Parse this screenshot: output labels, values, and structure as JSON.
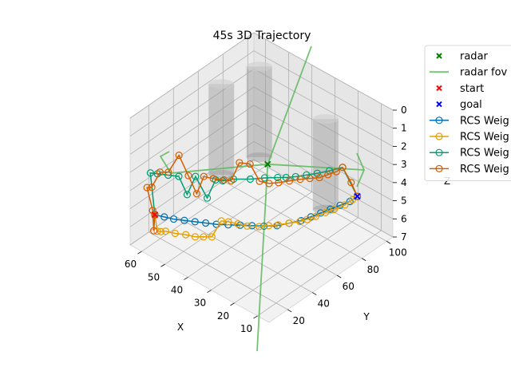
{
  "chart_data": {
    "type": "line",
    "projection": "3d",
    "title": "45s 3D Trajectory",
    "xlabel": "X",
    "ylabel": "Y",
    "zlabel": "Z",
    "xlim": [
      5,
      65
    ],
    "ylim": [
      5,
      105
    ],
    "zlim": [
      0,
      7
    ],
    "z_inverted": true,
    "x_ticks": [
      "60",
      "50",
      "40",
      "30",
      "20",
      "10"
    ],
    "y_ticks": [
      "20",
      "40",
      "60",
      "80",
      "100"
    ],
    "z_ticks": [
      "0",
      "1",
      "2",
      "3",
      "4",
      "5",
      "6",
      "7"
    ],
    "grid": true,
    "legend_position": "upper-right-outside",
    "colors": {
      "radar": "#008000",
      "radar_fov": "#5cb85c",
      "start": "#ff0000",
      "goal": "#0000ff",
      "series": [
        "#0072b2",
        "#e69f00",
        "#009e73",
        "#d55e00"
      ],
      "obstacles": "#999999"
    },
    "legend": [
      {
        "label": "radar",
        "kind": "marker-x",
        "color": "#008000"
      },
      {
        "label": "radar fov",
        "kind": "line",
        "color": "#5cb85c"
      },
      {
        "label": "start",
        "kind": "marker-x",
        "color": "#ff0000"
      },
      {
        "label": "goal",
        "kind": "marker-x",
        "color": "#0000ff"
      },
      {
        "label": "RCS Weig",
        "kind": "line-circle",
        "color": "#0072b2"
      },
      {
        "label": "RCS Weig",
        "kind": "line-circle",
        "color": "#e69f00"
      },
      {
        "label": "RCS Weig",
        "kind": "line-circle",
        "color": "#009e73"
      },
      {
        "label": "RCS Weig",
        "kind": "line-circle",
        "color": "#d55e00"
      }
    ],
    "radar": {
      "x": 35,
      "y": 60,
      "z": 3
    },
    "start": {
      "x": 57,
      "y": 10,
      "z": 5
    },
    "goal": {
      "x": 15,
      "y": 95,
      "z": 5
    },
    "obstacles": [
      {
        "x": 55,
        "y": 60,
        "r": 4,
        "z_top": 0,
        "z_bottom": 5
      },
      {
        "x": 52,
        "y": 85,
        "r": 4,
        "z_top": 0,
        "z_bottom": 5
      },
      {
        "x": 18,
        "y": 75,
        "r": 4,
        "z_top": 0,
        "z_bottom": 5
      }
    ],
    "series": [
      {
        "points": [
          [
            57,
            10,
            5
          ],
          [
            54,
            12,
            5
          ],
          [
            51,
            14,
            5
          ],
          [
            48,
            17,
            5
          ],
          [
            45,
            20,
            5
          ],
          [
            42,
            23,
            5
          ],
          [
            39,
            26,
            5
          ],
          [
            36,
            30,
            5
          ],
          [
            33,
            34,
            5
          ],
          [
            30,
            38,
            5
          ],
          [
            27,
            42,
            5
          ],
          [
            24,
            47,
            5
          ],
          [
            22,
            53,
            5
          ],
          [
            20,
            59,
            5
          ],
          [
            19,
            65,
            5
          ],
          [
            18,
            71,
            5
          ],
          [
            17,
            77,
            5
          ],
          [
            16,
            83,
            5
          ],
          [
            15,
            89,
            5
          ],
          [
            15,
            95,
            5
          ]
        ]
      },
      {
        "points": [
          [
            57,
            10,
            5
          ],
          [
            57,
            12,
            6
          ],
          [
            56,
            13,
            6
          ],
          [
            55,
            15,
            6
          ],
          [
            52,
            17,
            6
          ],
          [
            49,
            20,
            6
          ],
          [
            46,
            22,
            6
          ],
          [
            44,
            25,
            6
          ],
          [
            42,
            28,
            6
          ],
          [
            39,
            30,
            5
          ],
          [
            37,
            32,
            5
          ],
          [
            34,
            34,
            5
          ],
          [
            31,
            36,
            5
          ],
          [
            28,
            40,
            5
          ],
          [
            26,
            44,
            5
          ],
          [
            24,
            48,
            5
          ],
          [
            22,
            53,
            5
          ],
          [
            20,
            58,
            5
          ],
          [
            19,
            62,
            5
          ],
          [
            18,
            67,
            5
          ],
          [
            17,
            73,
            5
          ],
          [
            16,
            78,
            5
          ],
          [
            15,
            85,
            5
          ],
          [
            15,
            91,
            5
          ],
          [
            15,
            95,
            5
          ]
        ]
      },
      {
        "points": [
          [
            57,
            10,
            5
          ],
          [
            60,
            12,
            3
          ],
          [
            58,
            14,
            3
          ],
          [
            55,
            17,
            3
          ],
          [
            52,
            20,
            3
          ],
          [
            50,
            23,
            4
          ],
          [
            48,
            26,
            3
          ],
          [
            44,
            28,
            4
          ],
          [
            42,
            31,
            3
          ],
          [
            40,
            33,
            3
          ],
          [
            38,
            38,
            3
          ],
          [
            34,
            44,
            3
          ],
          [
            31,
            50,
            3
          ],
          [
            28,
            55,
            3
          ],
          [
            26,
            58,
            3
          ],
          [
            24,
            62,
            3
          ],
          [
            22,
            67,
            3
          ],
          [
            20,
            72,
            3
          ],
          [
            18,
            78,
            3
          ],
          [
            16,
            85,
            3
          ],
          [
            15,
            95,
            5
          ]
        ]
      },
      {
        "points": [
          [
            57,
            10,
            5
          ],
          [
            58,
            11,
            6
          ],
          [
            59,
            12,
            5
          ],
          [
            62,
            13,
            4
          ],
          [
            61,
            15,
            4
          ],
          [
            58,
            16,
            3
          ],
          [
            56,
            19,
            3
          ],
          [
            53,
            22,
            2
          ],
          [
            50,
            24,
            3
          ],
          [
            48,
            27,
            4
          ],
          [
            46,
            29,
            3
          ],
          [
            43,
            31,
            3
          ],
          [
            40,
            34,
            3
          ],
          [
            38,
            36,
            3
          ],
          [
            36,
            39,
            2
          ],
          [
            33,
            42,
            2
          ],
          [
            31,
            46,
            3
          ],
          [
            28,
            48,
            3
          ],
          [
            26,
            52,
            3
          ],
          [
            24,
            57,
            3
          ],
          [
            22,
            62,
            3
          ],
          [
            20,
            66,
            3
          ],
          [
            18,
            70,
            3
          ],
          [
            17,
            75,
            3
          ],
          [
            16,
            80,
            3
          ],
          [
            16,
            85,
            3
          ],
          [
            15,
            90,
            4
          ],
          [
            15,
            95,
            5
          ]
        ]
      }
    ]
  }
}
